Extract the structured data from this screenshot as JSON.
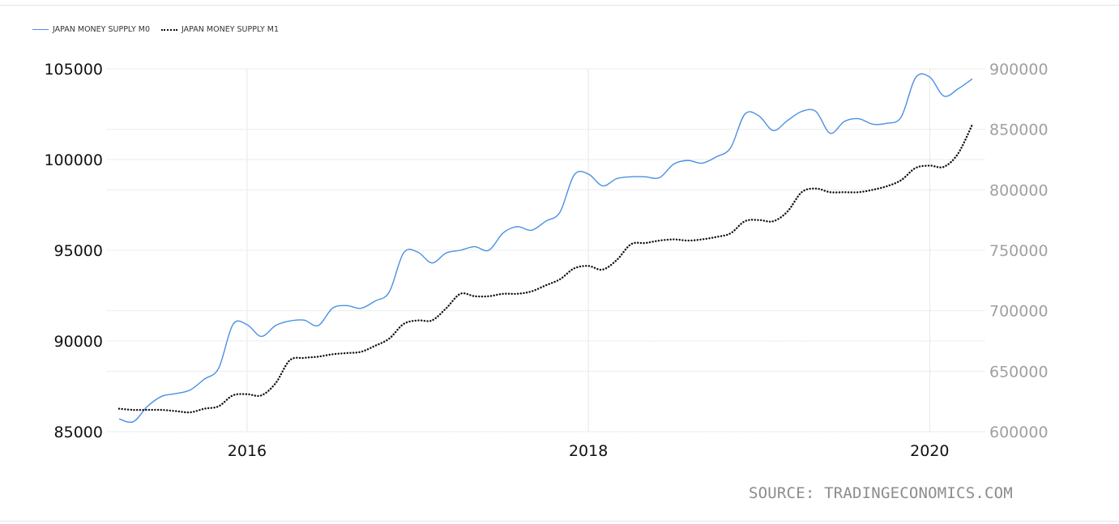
{
  "chart_data": {
    "type": "line",
    "x_range": [
      "2015-04",
      "2020-04"
    ],
    "series": [
      {
        "name": "JAPAN MONEY SUPPLY M0",
        "axis": "left",
        "color": "#4a90e2",
        "style": "solid",
        "points": [
          [
            "2015-04",
            85700
          ],
          [
            "2015-05",
            85550
          ],
          [
            "2015-06",
            86400
          ],
          [
            "2015-07",
            86950
          ],
          [
            "2015-08",
            87100
          ],
          [
            "2015-09",
            87300
          ],
          [
            "2015-10",
            87900
          ],
          [
            "2015-11",
            88500
          ],
          [
            "2015-12",
            90900
          ],
          [
            "2016-01",
            90900
          ],
          [
            "2016-02",
            90250
          ],
          [
            "2016-03",
            90850
          ],
          [
            "2016-04",
            91100
          ],
          [
            "2016-05",
            91150
          ],
          [
            "2016-06",
            90850
          ],
          [
            "2016-07",
            91800
          ],
          [
            "2016-08",
            91950
          ],
          [
            "2016-09",
            91800
          ],
          [
            "2016-10",
            92200
          ],
          [
            "2016-11",
            92700
          ],
          [
            "2016-12",
            94850
          ],
          [
            "2017-01",
            94900
          ],
          [
            "2017-02",
            94300
          ],
          [
            "2017-03",
            94850
          ],
          [
            "2017-04",
            95000
          ],
          [
            "2017-05",
            95200
          ],
          [
            "2017-06",
            95000
          ],
          [
            "2017-07",
            95950
          ],
          [
            "2017-08",
            96300
          ],
          [
            "2017-09",
            96100
          ],
          [
            "2017-10",
            96600
          ],
          [
            "2017-11",
            97100
          ],
          [
            "2017-12",
            99150
          ],
          [
            "2018-01",
            99200
          ],
          [
            "2018-02",
            98550
          ],
          [
            "2018-03",
            98950
          ],
          [
            "2018-04",
            99050
          ],
          [
            "2018-05",
            99050
          ],
          [
            "2018-06",
            99000
          ],
          [
            "2018-07",
            99750
          ],
          [
            "2018-08",
            99950
          ],
          [
            "2018-09",
            99800
          ],
          [
            "2018-10",
            100150
          ],
          [
            "2018-11",
            100650
          ],
          [
            "2018-12",
            102500
          ],
          [
            "2019-01",
            102400
          ],
          [
            "2019-02",
            101600
          ],
          [
            "2019-03",
            102150
          ],
          [
            "2019-04",
            102650
          ],
          [
            "2019-05",
            102650
          ],
          [
            "2019-06",
            101450
          ],
          [
            "2019-07",
            102100
          ],
          [
            "2019-08",
            102250
          ],
          [
            "2019-09",
            101950
          ],
          [
            "2019-10",
            102000
          ],
          [
            "2019-11",
            102350
          ],
          [
            "2019-12",
            104500
          ],
          [
            "2020-01",
            104550
          ],
          [
            "2020-02",
            103500
          ],
          [
            "2020-03",
            103900
          ],
          [
            "2020-04",
            104450
          ]
        ]
      },
      {
        "name": "JAPAN MONEY SUPPLY M1",
        "axis": "right",
        "color": "#111111",
        "style": "dotted",
        "points": [
          [
            "2015-04",
            619000
          ],
          [
            "2015-05",
            618000
          ],
          [
            "2015-06",
            618000
          ],
          [
            "2015-07",
            618000
          ],
          [
            "2015-08",
            617000
          ],
          [
            "2015-09",
            616000
          ],
          [
            "2015-10",
            619000
          ],
          [
            "2015-11",
            621000
          ],
          [
            "2015-12",
            630000
          ],
          [
            "2016-01",
            631000
          ],
          [
            "2016-02",
            630000
          ],
          [
            "2016-03",
            640000
          ],
          [
            "2016-04",
            659000
          ],
          [
            "2016-05",
            661000
          ],
          [
            "2016-06",
            662000
          ],
          [
            "2016-07",
            664000
          ],
          [
            "2016-08",
            665000
          ],
          [
            "2016-09",
            666000
          ],
          [
            "2016-10",
            671000
          ],
          [
            "2016-11",
            677000
          ],
          [
            "2016-12",
            689000
          ],
          [
            "2017-01",
            692000
          ],
          [
            "2017-02",
            692000
          ],
          [
            "2017-03",
            702000
          ],
          [
            "2017-04",
            714000
          ],
          [
            "2017-05",
            712000
          ],
          [
            "2017-06",
            712000
          ],
          [
            "2017-07",
            714000
          ],
          [
            "2017-08",
            714000
          ],
          [
            "2017-09",
            716000
          ],
          [
            "2017-10",
            721000
          ],
          [
            "2017-11",
            726000
          ],
          [
            "2017-12",
            735000
          ],
          [
            "2018-01",
            737000
          ],
          [
            "2018-02",
            734000
          ],
          [
            "2018-03",
            742000
          ],
          [
            "2018-04",
            755000
          ],
          [
            "2018-05",
            756000
          ],
          [
            "2018-06",
            758000
          ],
          [
            "2018-07",
            759000
          ],
          [
            "2018-08",
            758000
          ],
          [
            "2018-09",
            759000
          ],
          [
            "2018-10",
            761000
          ],
          [
            "2018-11",
            764000
          ],
          [
            "2018-12",
            774000
          ],
          [
            "2019-01",
            775000
          ],
          [
            "2019-02",
            774000
          ],
          [
            "2019-03",
            782000
          ],
          [
            "2019-04",
            798000
          ],
          [
            "2019-05",
            801000
          ],
          [
            "2019-06",
            798000
          ],
          [
            "2019-07",
            798000
          ],
          [
            "2019-08",
            798000
          ],
          [
            "2019-09",
            800000
          ],
          [
            "2019-10",
            803000
          ],
          [
            "2019-11",
            808000
          ],
          [
            "2019-12",
            818000
          ],
          [
            "2020-01",
            820000
          ],
          [
            "2020-02",
            819000
          ],
          [
            "2020-03",
            830000
          ],
          [
            "2020-04",
            854000
          ]
        ]
      }
    ],
    "y_left": {
      "min": 85000,
      "max": 105000,
      "ticks": [
        "85000",
        "90000",
        "95000",
        "100000",
        "105000"
      ],
      "color": "#111111"
    },
    "y_right": {
      "min": 600000,
      "max": 900000,
      "ticks": [
        "600000",
        "650000",
        "700000",
        "750000",
        "800000",
        "850000",
        "900000"
      ],
      "color": "#a0a0a0"
    },
    "x_ticks": [
      {
        "date": "2016-01",
        "label": "2016"
      },
      {
        "date": "2018-01",
        "label": "2018"
      },
      {
        "date": "2020-01",
        "label": "2020"
      }
    ],
    "grid": true,
    "legend_position": "top-left"
  },
  "legend": {
    "m0_label": "JAPAN MONEY SUPPLY M0",
    "m1_label": "JAPAN MONEY SUPPLY M1"
  },
  "source": "SOURCE: TRADINGECONOMICS.COM"
}
